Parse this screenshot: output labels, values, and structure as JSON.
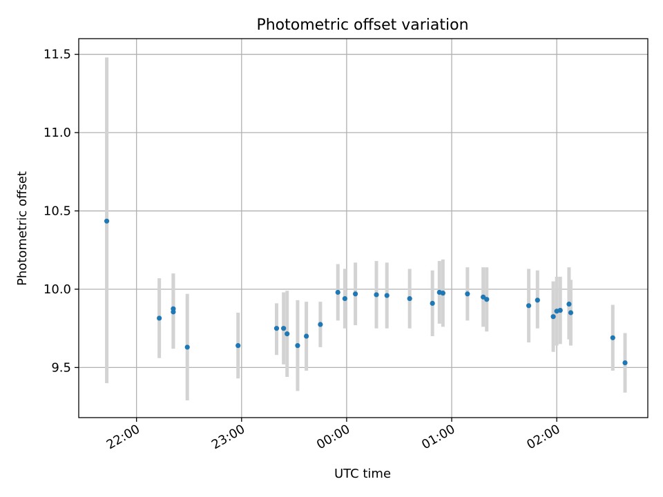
{
  "chart_data": {
    "type": "scatter",
    "title": "Photometric offset variation",
    "xlabel": "UTC time",
    "ylabel": "Photometric offset",
    "xlim": [
      "21:27",
      "02:52"
    ],
    "ylim": [
      9.18,
      11.6
    ],
    "grid": true,
    "x_ticks": [
      "22:00",
      "23:00",
      "00:00",
      "01:00",
      "02:00"
    ],
    "y_ticks": [
      "9.5",
      "10.0",
      "10.5",
      "11.0",
      "11.5"
    ],
    "colors": {
      "marker": "#1f77b4",
      "errorbar": "#d3d3d3",
      "grid": "#b0b0b0"
    },
    "points": [
      {
        "t": "21:43",
        "y": 10.435,
        "lo": 9.4,
        "hi": 11.48
      },
      {
        "t": "22:13",
        "y": 9.815,
        "lo": 9.56,
        "hi": 10.07
      },
      {
        "t": "22:21",
        "y": 9.875,
        "lo": 9.62,
        "hi": 10.1
      },
      {
        "t": "22:21",
        "y": 9.855,
        "lo": 9.62,
        "hi": 10.1
      },
      {
        "t": "22:29",
        "y": 9.63,
        "lo": 9.29,
        "hi": 9.97
      },
      {
        "t": "22:58",
        "y": 9.64,
        "lo": 9.43,
        "hi": 9.85
      },
      {
        "t": "23:20",
        "y": 9.75,
        "lo": 9.58,
        "hi": 9.91
      },
      {
        "t": "23:24",
        "y": 9.75,
        "lo": 9.52,
        "hi": 9.98
      },
      {
        "t": "23:26",
        "y": 9.715,
        "lo": 9.44,
        "hi": 9.99
      },
      {
        "t": "23:32",
        "y": 9.64,
        "lo": 9.35,
        "hi": 9.93
      },
      {
        "t": "23:37",
        "y": 9.7,
        "lo": 9.48,
        "hi": 9.92
      },
      {
        "t": "23:45",
        "y": 9.775,
        "lo": 9.63,
        "hi": 9.92
      },
      {
        "t": "23:55",
        "y": 9.98,
        "lo": 9.8,
        "hi": 10.16
      },
      {
        "t": "23:59",
        "y": 9.94,
        "lo": 9.75,
        "hi": 10.13
      },
      {
        "t": "00:05",
        "y": 9.97,
        "lo": 9.77,
        "hi": 10.17
      },
      {
        "t": "00:17",
        "y": 9.965,
        "lo": 9.75,
        "hi": 10.18
      },
      {
        "t": "00:23",
        "y": 9.96,
        "lo": 9.75,
        "hi": 10.17
      },
      {
        "t": "00:36",
        "y": 9.94,
        "lo": 9.75,
        "hi": 10.13
      },
      {
        "t": "00:49",
        "y": 9.91,
        "lo": 9.7,
        "hi": 10.12
      },
      {
        "t": "00:53",
        "y": 9.98,
        "lo": 9.78,
        "hi": 10.18
      },
      {
        "t": "00:55",
        "y": 9.975,
        "lo": 9.76,
        "hi": 10.19
      },
      {
        "t": "01:09",
        "y": 9.97,
        "lo": 9.8,
        "hi": 10.14
      },
      {
        "t": "01:18",
        "y": 9.95,
        "lo": 9.76,
        "hi": 10.14
      },
      {
        "t": "01:20",
        "y": 9.935,
        "lo": 9.73,
        "hi": 10.14
      },
      {
        "t": "01:44",
        "y": 9.895,
        "lo": 9.66,
        "hi": 10.13
      },
      {
        "t": "01:49",
        "y": 9.93,
        "lo": 9.75,
        "hi": 10.12
      },
      {
        "t": "01:58",
        "y": 9.825,
        "lo": 9.6,
        "hi": 10.05
      },
      {
        "t": "02:00",
        "y": 9.86,
        "lo": 9.64,
        "hi": 10.08
      },
      {
        "t": "02:02",
        "y": 9.865,
        "lo": 9.65,
        "hi": 10.08
      },
      {
        "t": "02:07",
        "y": 9.905,
        "lo": 9.68,
        "hi": 10.14
      },
      {
        "t": "02:08",
        "y": 9.85,
        "lo": 9.64,
        "hi": 10.06
      },
      {
        "t": "02:32",
        "y": 9.69,
        "lo": 9.48,
        "hi": 9.9
      },
      {
        "t": "02:39",
        "y": 9.53,
        "lo": 9.34,
        "hi": 9.72
      }
    ]
  }
}
